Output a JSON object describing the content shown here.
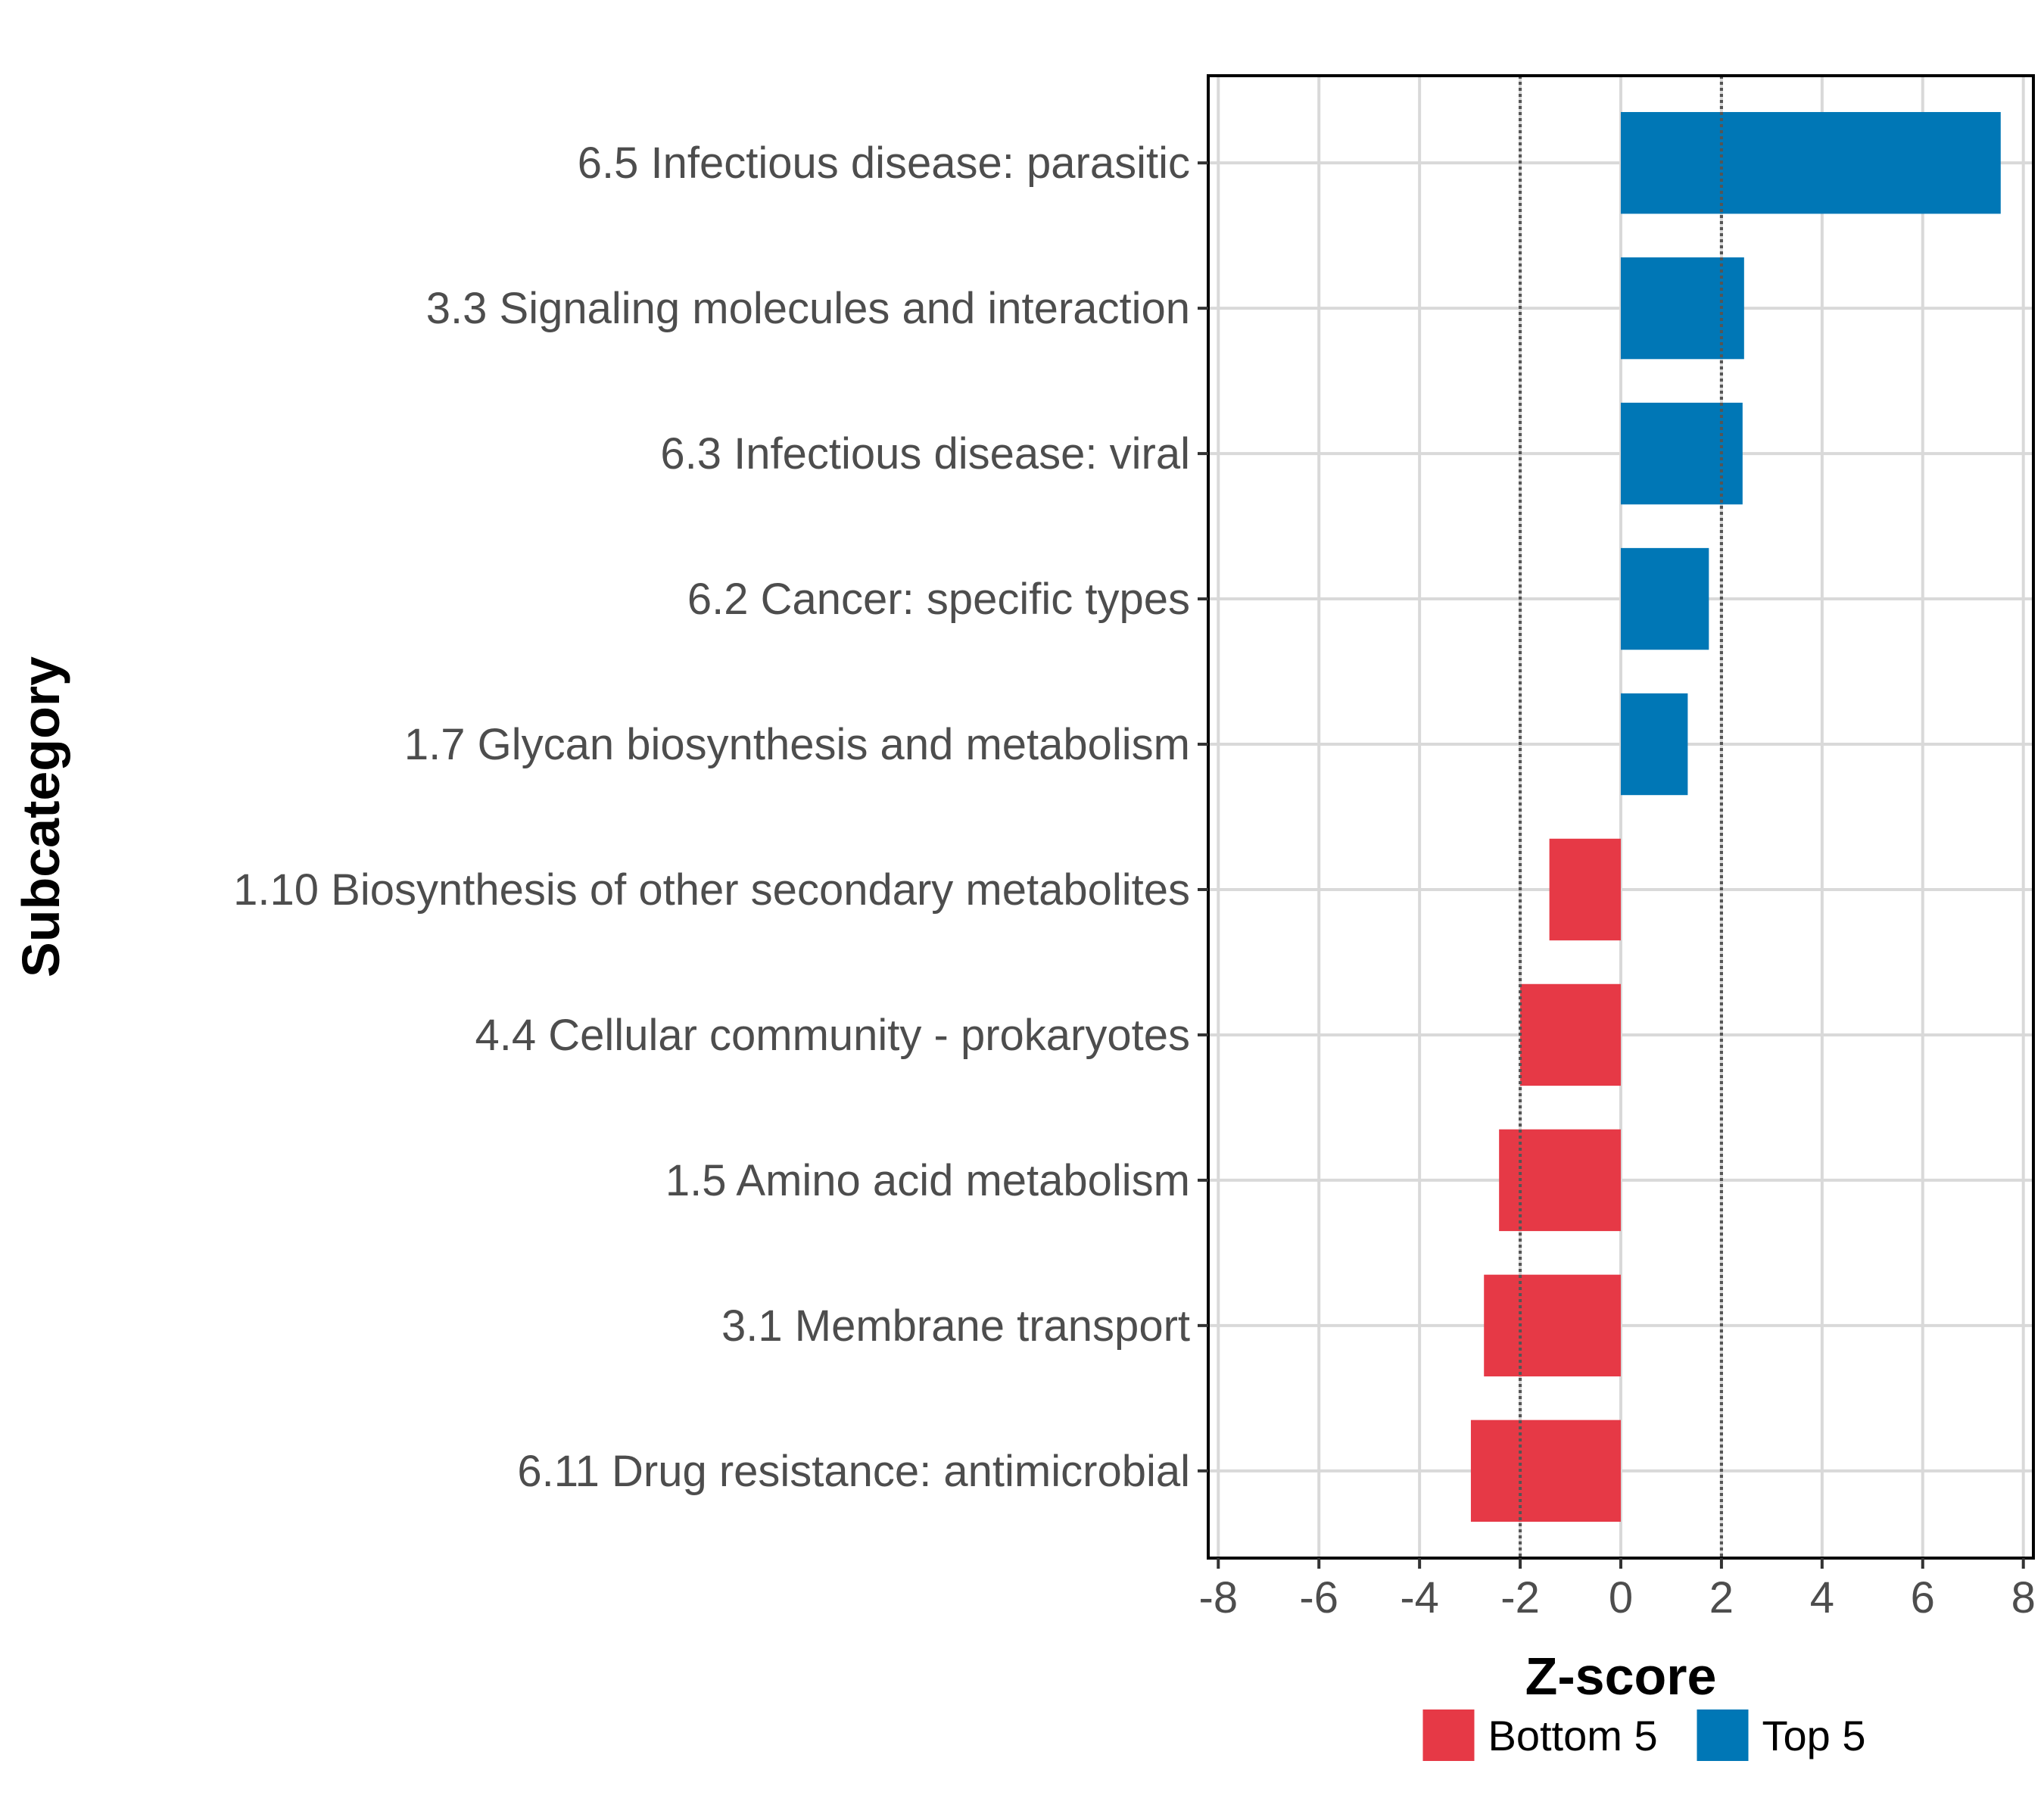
{
  "chart_data": {
    "type": "bar",
    "orientation": "horizontal",
    "xlabel": "Z-score",
    "ylabel": "Subcategory",
    "xlim": [
      -8.2,
      8.2
    ],
    "x_ticks": [
      -8,
      -6,
      -4,
      -2,
      0,
      2,
      4,
      6,
      8
    ],
    "x_tick_labels": [
      "-8",
      "-6",
      "-4",
      "-2",
      "0",
      "2",
      "4",
      "6",
      "8"
    ],
    "reference_lines": [
      -2,
      2
    ],
    "grid": true,
    "legend_position": "bottom",
    "legend": [
      {
        "name": "Bottom 5",
        "color": "#e63946"
      },
      {
        "name": "Top 5",
        "color": "#0077b6"
      }
    ],
    "categories": [
      "6.5 Infectious disease: parasitic",
      "3.3 Signaling molecules and interaction",
      "6.3 Infectious disease: viral",
      "6.2 Cancer: specific types",
      "1.7 Glycan biosynthesis and metabolism",
      "1.10 Biosynthesis of other secondary metabolites",
      "4.4 Cellular community - prokaryotes",
      "1.5 Amino acid metabolism",
      "3.1 Membrane transport",
      "6.11 Drug resistance: antimicrobial"
    ],
    "values": [
      7.55,
      2.45,
      2.42,
      1.75,
      1.33,
      -1.42,
      -2.0,
      -2.42,
      -2.72,
      -2.98
    ],
    "groups": [
      "Top 5",
      "Top 5",
      "Top 5",
      "Top 5",
      "Top 5",
      "Bottom 5",
      "Bottom 5",
      "Bottom 5",
      "Bottom 5",
      "Bottom 5"
    ]
  }
}
